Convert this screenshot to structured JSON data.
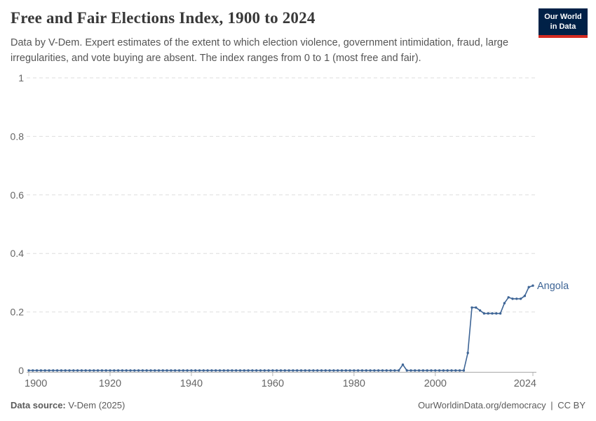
{
  "header": {
    "title": "Free and Fair Elections Index, 1900 to 2024",
    "subtitle": "Data by V-Dem. Expert estimates of the extent to which election violence, government intimidation, fraud, large irregularities, and vote buying are absent. The index ranges from 0 to 1 (most free and fair)."
  },
  "logo": {
    "line1": "Our World",
    "line2": "in Data",
    "bg_color": "#002147",
    "bar_color": "#d42b21"
  },
  "footer": {
    "source_label": "Data source:",
    "source_value": "V-Dem (2025)",
    "link": "OurWorldinData.org/democracy",
    "separator": "|",
    "license": "CC BY"
  },
  "colors": {
    "line": "#3e6596",
    "entity_label": "#3e6596",
    "grid": "#dedede",
    "axis": "#a8a8a8",
    "tick": "#b5b5b5",
    "tick_label": "#666666",
    "title": "#383838",
    "subtitle": "#555555"
  },
  "chart_data": {
    "type": "line",
    "title": "Free and Fair Elections Index, 1900 to 2024",
    "xlabel": "",
    "ylabel": "",
    "x_start": 1900,
    "x_step": 1,
    "x_end": 2024,
    "xticks": [
      1900,
      1920,
      1940,
      1960,
      1980,
      2000,
      2024
    ],
    "yticks": [
      0,
      0.2,
      0.4,
      0.6,
      0.8,
      1
    ],
    "ytick_labels": [
      "0",
      "0.2",
      "0.4",
      "0.6",
      "0.8",
      "1"
    ],
    "ylim": [
      0,
      1
    ],
    "grid": "horizontal-dashed",
    "legend": "entity label at line end",
    "markers": true,
    "series": [
      {
        "name": "Angola",
        "color": "#3e6596",
        "values": [
          0,
          0,
          0,
          0,
          0,
          0,
          0,
          0,
          0,
          0,
          0,
          0,
          0,
          0,
          0,
          0,
          0,
          0,
          0,
          0,
          0,
          0,
          0,
          0,
          0,
          0,
          0,
          0,
          0,
          0,
          0,
          0,
          0,
          0,
          0,
          0,
          0,
          0,
          0,
          0,
          0,
          0,
          0,
          0,
          0,
          0,
          0,
          0,
          0,
          0,
          0,
          0,
          0,
          0,
          0,
          0,
          0,
          0,
          0,
          0,
          0,
          0,
          0,
          0,
          0,
          0,
          0,
          0,
          0,
          0,
          0,
          0,
          0,
          0,
          0,
          0,
          0,
          0,
          0,
          0,
          0,
          0,
          0,
          0,
          0,
          0,
          0,
          0,
          0,
          0,
          0,
          0,
          0.02,
          0,
          0,
          0,
          0,
          0,
          0,
          0,
          0,
          0,
          0,
          0,
          0,
          0,
          0,
          0,
          0.06,
          0.215,
          0.215,
          0.205,
          0.195,
          0.195,
          0.195,
          0.195,
          0.195,
          0.23,
          0.25,
          0.245,
          0.245,
          0.245,
          0.255,
          0.285,
          0.29
        ]
      }
    ],
    "key_points": {
      "1900-1991": 0,
      "1992": 0.02,
      "1993-2007": 0,
      "2008": 0.06,
      "2009-2010": 0.215,
      "2011": 0.205,
      "2012-2016": 0.195,
      "2017": 0.23,
      "2018": 0.25,
      "2019-2021": 0.245,
      "2022": 0.255,
      "2023": 0.285,
      "2024": 0.29
    }
  }
}
